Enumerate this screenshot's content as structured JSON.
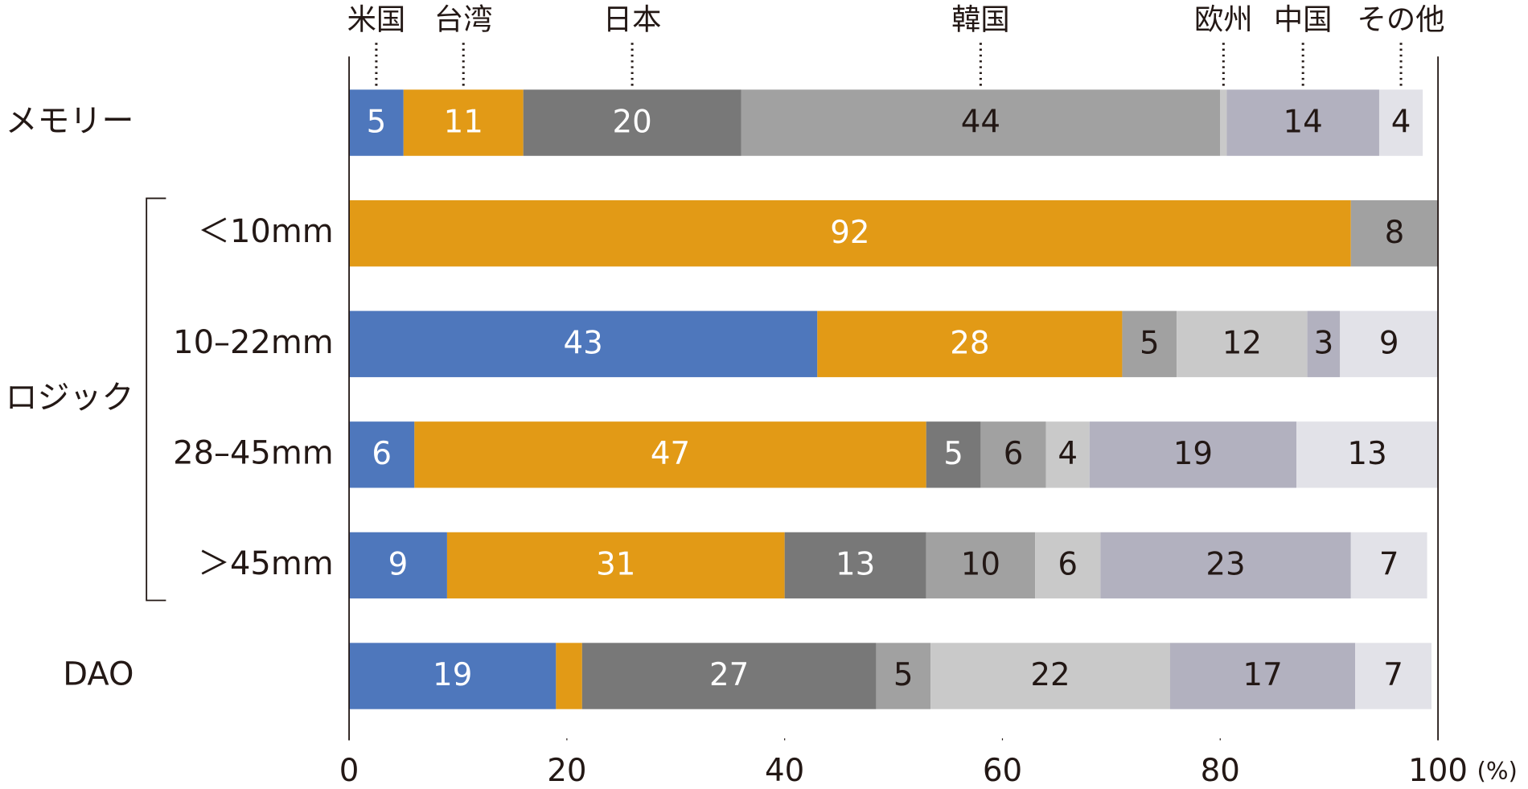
{
  "chart_data": {
    "type": "stacked-barh",
    "categories": [
      "メモリー",
      "＜10mm",
      "10–22mm",
      "28–45mm",
      "＞45mm",
      "DAO"
    ],
    "group": {
      "label": "ロジック",
      "members": [
        "＜10mm",
        "10–22mm",
        "28–45mm",
        "＞45mm"
      ]
    },
    "series": [
      {
        "name": "米国",
        "color": "#4e77bc",
        "label_color": "#ffffff",
        "values": [
          5,
          null,
          43,
          6,
          9,
          19
        ]
      },
      {
        "name": "台湾",
        "color": "#e29a16",
        "label_color": "#ffffff",
        "values": [
          11,
          92,
          28,
          47,
          31,
          2.4
        ]
      },
      {
        "name": "日本",
        "color": "#787878",
        "label_color": "#ffffff",
        "values": [
          20,
          null,
          null,
          5,
          13,
          27
        ]
      },
      {
        "name": "韓国",
        "color": "#a1a1a1",
        "label_color": "#231815",
        "values": [
          44,
          8,
          5,
          6,
          10,
          5
        ]
      },
      {
        "name": "欧州",
        "color": "#c9c9c9",
        "label_color": "#231815",
        "values": [
          0.6,
          null,
          12,
          4,
          6,
          22
        ]
      },
      {
        "name": "中国",
        "color": "#b2b1bf",
        "label_color": "#231815",
        "values": [
          14,
          null,
          3,
          19,
          23,
          17
        ]
      },
      {
        "name": "その他",
        "color": "#e2e2e8",
        "label_color": "#231815",
        "values": [
          4,
          null,
          9,
          13,
          7,
          7
        ]
      }
    ],
    "xlim": [
      0,
      100
    ],
    "xticks": [
      0,
      20,
      40,
      60,
      80,
      100
    ],
    "x_unit": "(%)"
  }
}
